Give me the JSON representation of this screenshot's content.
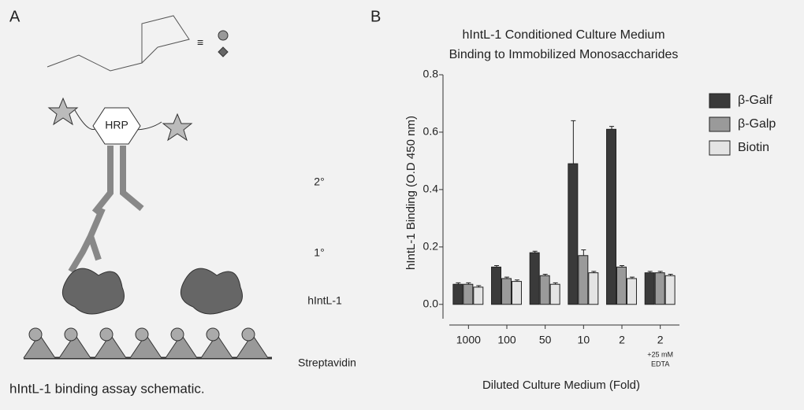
{
  "panel_a": {
    "letter": "A",
    "hrp": "HRP",
    "secondary": "2°",
    "primary": "1°",
    "protein": "hIntL-1",
    "surface": "Streptavidin",
    "caption": "hIntL-1 binding assay schematic."
  },
  "chart_data": {
    "type": "bar",
    "letter": "B",
    "title": "hIntL-1 Conditioned Culture Medium",
    "subtitle": "Binding to Immobilized Monosaccharides",
    "y_label": "hIntL-1 Binding (O.D 450 nm)",
    "x_label": "Diluted Culture Medium (Fold)",
    "categories": [
      "1000",
      "100",
      "50",
      "10",
      "2",
      "2"
    ],
    "annotations": [
      "+25 mM",
      "EDTA"
    ],
    "series": [
      {
        "name": "β-Galf",
        "color": "#3a3a3a",
        "values": [
          0.07,
          0.13,
          0.18,
          0.49,
          0.61,
          0.11
        ],
        "errors": [
          0.005,
          0.005,
          0.005,
          0.15,
          0.01,
          0.005
        ]
      },
      {
        "name": "β-Galp",
        "color": "#9a9a9a",
        "values": [
          0.07,
          0.09,
          0.1,
          0.17,
          0.13,
          0.11
        ],
        "errors": [
          0.005,
          0.005,
          0.005,
          0.02,
          0.005,
          0.005
        ]
      },
      {
        "name": "Biotin",
        "color": "#e4e4e4",
        "values": [
          0.06,
          0.08,
          0.07,
          0.11,
          0.09,
          0.1
        ],
        "errors": [
          0.005,
          0.005,
          0.005,
          0.005,
          0.005,
          0.005
        ]
      }
    ],
    "ylim": [
      -0.05,
      0.8
    ],
    "yticks": [
      {
        "value": 0,
        "label": "0.0"
      },
      {
        "value": 0.2,
        "label": "0.2"
      },
      {
        "value": 0.4,
        "label": "0.4"
      },
      {
        "value": 0.6,
        "label": "0.6"
      },
      {
        "value": 0.8,
        "label": "0.8"
      }
    ],
    "legend": "right"
  }
}
